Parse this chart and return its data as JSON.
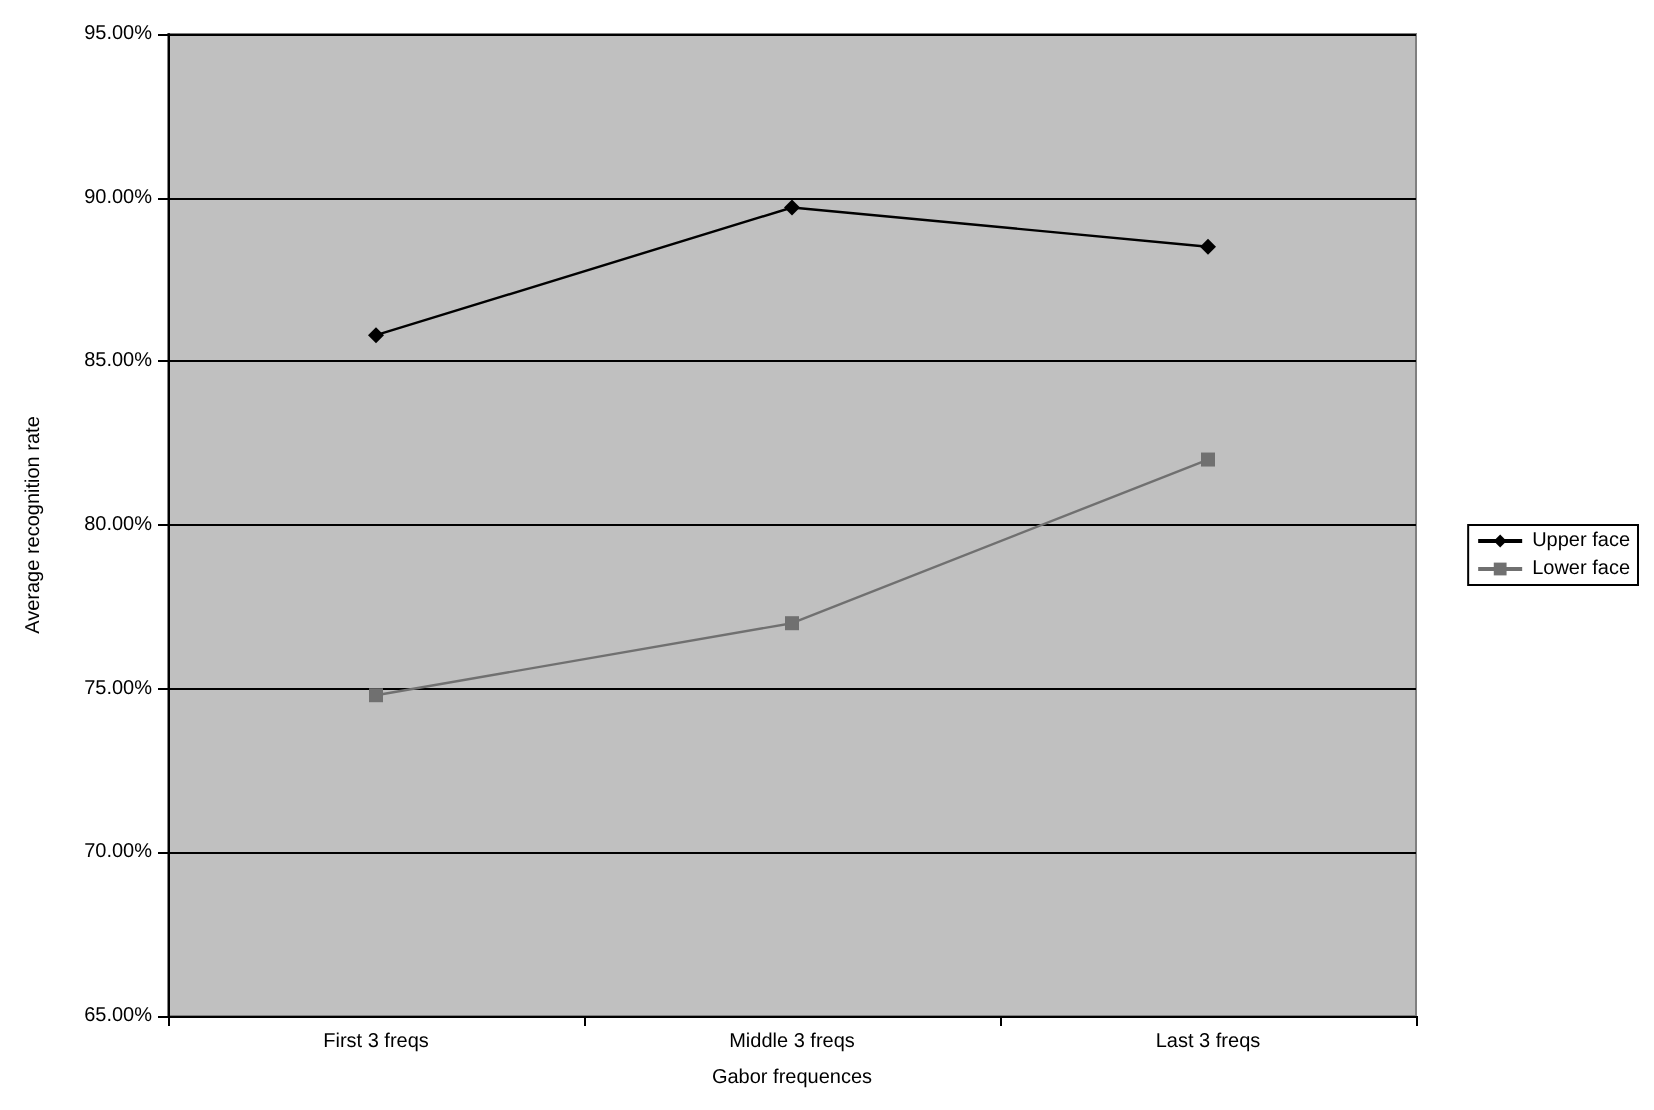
{
  "chart_data": {
    "type": "line",
    "xlabel": "Gabor frequences",
    "ylabel": "Average recognition rate",
    "categories": [
      "First 3 freqs",
      "Middle 3 freqs",
      "Last 3 freqs"
    ],
    "series": [
      {
        "name": "Upper face",
        "color": "#000000",
        "marker": "diamond",
        "values": [
          85.8,
          89.7,
          88.5
        ]
      },
      {
        "name": "Lower face",
        "color": "#707070",
        "marker": "square",
        "values": [
          74.8,
          77.0,
          82.0
        ]
      }
    ],
    "ylim": [
      65,
      95
    ],
    "yticks": [
      {
        "value": 65,
        "label": "65.00%"
      },
      {
        "value": 70,
        "label": "70.00%"
      },
      {
        "value": 75,
        "label": "75.00%"
      },
      {
        "value": 80,
        "label": "80.00%"
      },
      {
        "value": 85,
        "label": "85.00%"
      },
      {
        "value": 90,
        "label": "90.00%"
      },
      {
        "value": 95,
        "label": "95.00%"
      }
    ],
    "grid": "y",
    "legend": "right",
    "line_style": "solid"
  }
}
